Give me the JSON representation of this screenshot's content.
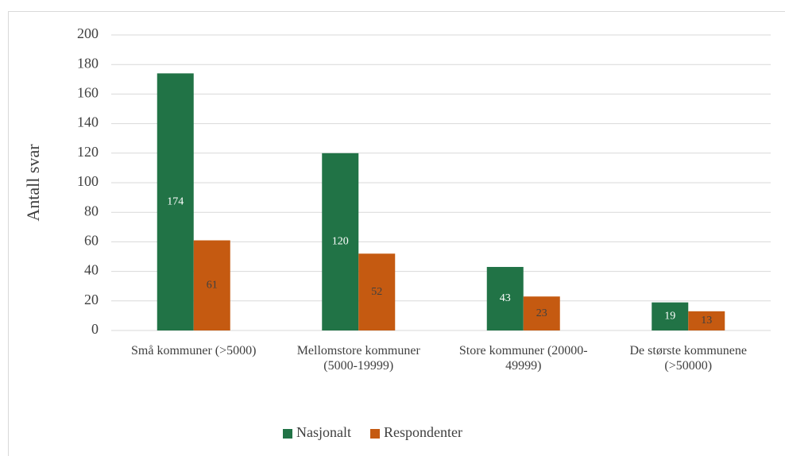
{
  "chart_data": {
    "type": "bar",
    "y_label": "Antall svar",
    "categories": [
      "Små kommuner (>5000)",
      "Mellomstore kommuner (5000-19999)",
      "Store kommuner (20000-49999)",
      "De største kommunene (>50000)"
    ],
    "series": [
      {
        "name": "Nasjonalt",
        "color": "#217346",
        "label_color": "#ffffff",
        "values": [
          174,
          120,
          43,
          19
        ]
      },
      {
        "name": "Respondenter",
        "color": "#c55a11",
        "label_color": "#404040",
        "values": [
          61,
          52,
          23,
          13
        ]
      }
    ],
    "ylim": [
      0,
      200
    ],
    "yticks": [
      0,
      20,
      40,
      60,
      80,
      100,
      120,
      140,
      160,
      180,
      200
    ],
    "grid": true
  }
}
